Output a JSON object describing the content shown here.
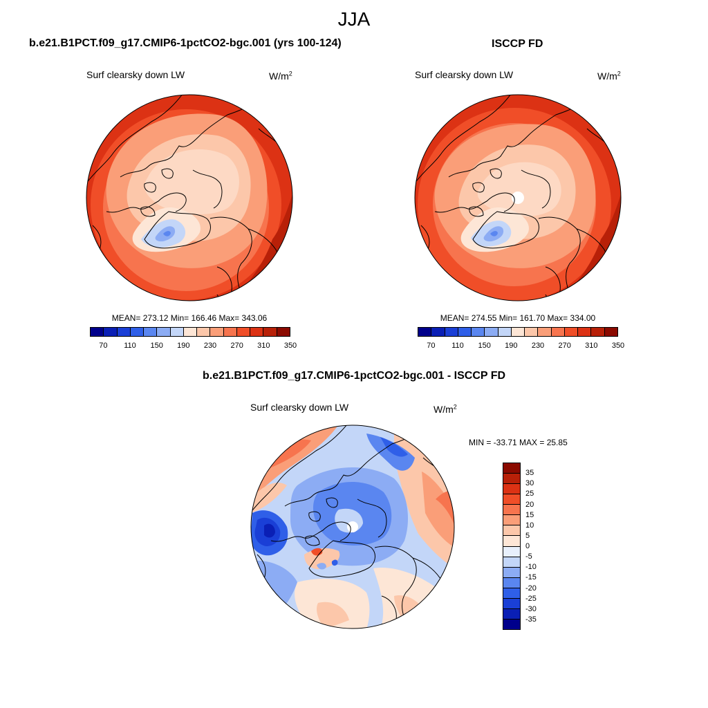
{
  "title": "JJA",
  "panels": [
    {
      "id": "model",
      "title": "b.e21.B1PCT.f09_g17.CMIP6-1pctCO2-bgc.001 (yrs 100-124)",
      "variable": "Surf clearsky down LW",
      "units_base": "W/m",
      "units_exp": "2",
      "stats": {
        "mean": "273.12",
        "min": "166.46",
        "max": "343.06"
      },
      "stats_text": "MEAN= 273.12  Min= 166.46  Max= 343.06"
    },
    {
      "id": "obs",
      "title": "ISCCP FD",
      "variable": "Surf clearsky down LW",
      "units_base": "W/m",
      "units_exp": "2",
      "stats": {
        "mean": "274.55",
        "min": "161.70",
        "max": "334.00"
      },
      "stats_text": "MEAN= 274.55  Min= 161.70  Max= 334.00"
    },
    {
      "id": "diff",
      "title": "b.e21.B1PCT.f09_g17.CMIP6-1pctCO2-bgc.001 - ISCCP FD",
      "variable": "Surf clearsky down LW",
      "units_base": "W/m",
      "units_exp": "2",
      "stats": {
        "min": "-33.71",
        "max": "25.85"
      },
      "stats_text": "MIN = -33.71 MAX =  25.85"
    }
  ],
  "colorbar_abs": {
    "colors": [
      "#00008b",
      "#0a1fb5",
      "#1a3fd6",
      "#2f5fe8",
      "#5a86f0",
      "#8cacf4",
      "#c3d6f8",
      "#fde6d6",
      "#fcc7aa",
      "#fa9e78",
      "#f7744e",
      "#f04e28",
      "#dc3214",
      "#b82008",
      "#8b0a00"
    ],
    "labels": [
      "70",
      "110",
      "150",
      "190",
      "230",
      "270",
      "310",
      "350"
    ]
  },
  "colorbar_diff": {
    "colors": [
      "#8b0a00",
      "#b82008",
      "#dc3214",
      "#f04e28",
      "#f7744e",
      "#fa9e78",
      "#fcc7aa",
      "#fde6d6",
      "#e8f0fc",
      "#c3d6f8",
      "#8cacf4",
      "#5a86f0",
      "#2f5fe8",
      "#1a3fd6",
      "#0a1fb5",
      "#00008b"
    ],
    "labels": [
      "35",
      "30",
      "25",
      "20",
      "15",
      "10",
      "5",
      "0",
      "-5",
      "-10",
      "-15",
      "-20",
      "-25",
      "-30",
      "-35"
    ]
  }
}
